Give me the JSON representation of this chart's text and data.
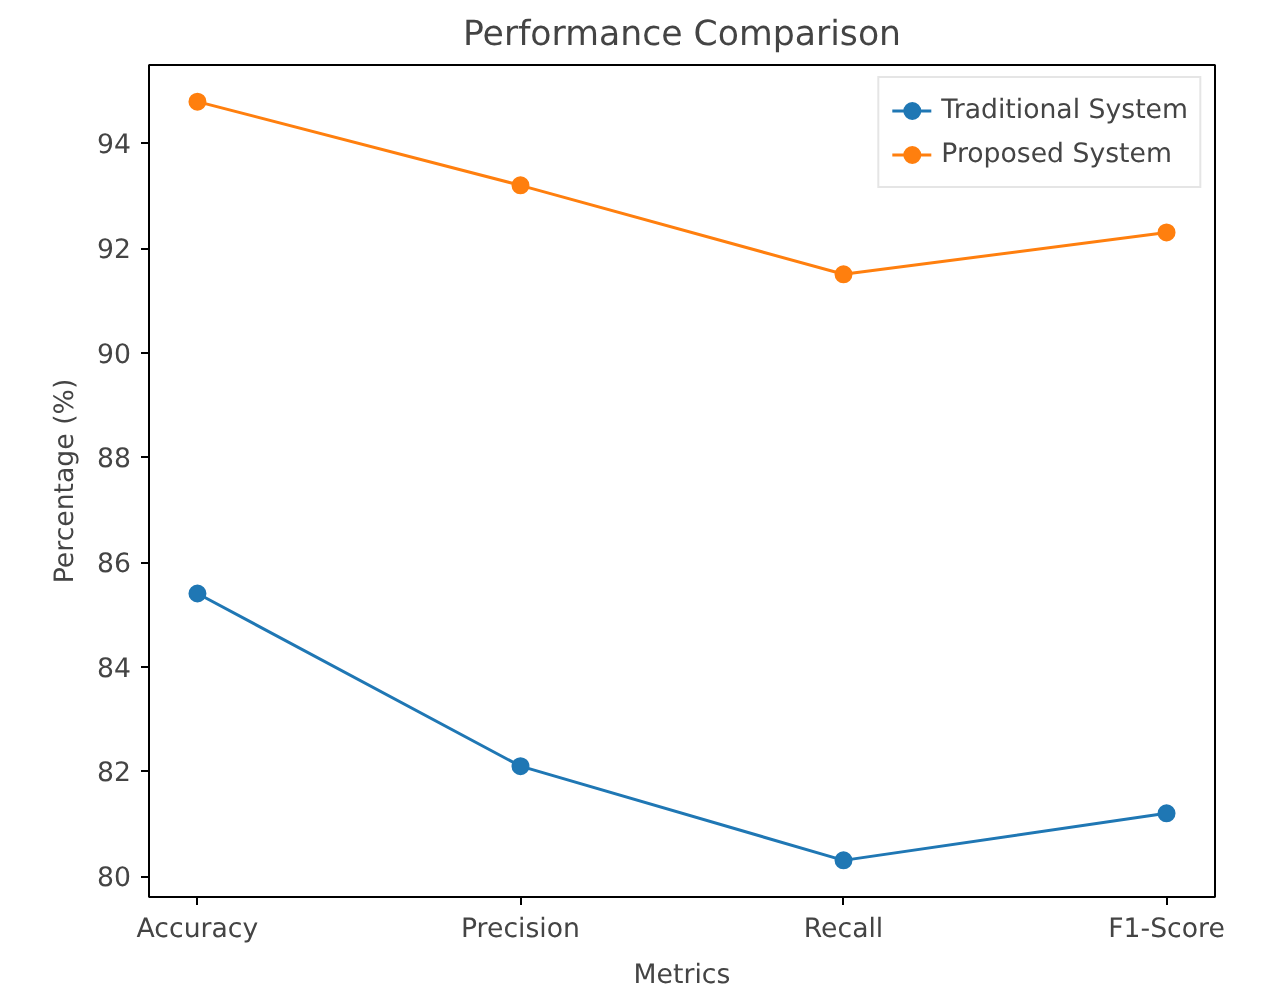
{
  "chart_data": {
    "type": "line",
    "title": "Performance Comparison",
    "xlabel": "Metrics",
    "ylabel": "Percentage (%)",
    "categories": [
      "Accuracy",
      "Precision",
      "Recall",
      "F1-Score"
    ],
    "series": [
      {
        "name": "Traditional System",
        "color": "#1f77b4",
        "values": [
          85.4,
          82.1,
          80.3,
          81.2
        ]
      },
      {
        "name": "Proposed System",
        "color": "#ff7f0e",
        "values": [
          94.8,
          93.2,
          91.5,
          92.3
        ]
      }
    ],
    "ylim": [
      79.6,
      95.5
    ],
    "yticks": [
      80,
      82,
      84,
      86,
      88,
      90,
      92,
      94
    ],
    "grid": false,
    "legend": "top right",
    "marker": "circle",
    "line_style": "solid"
  }
}
